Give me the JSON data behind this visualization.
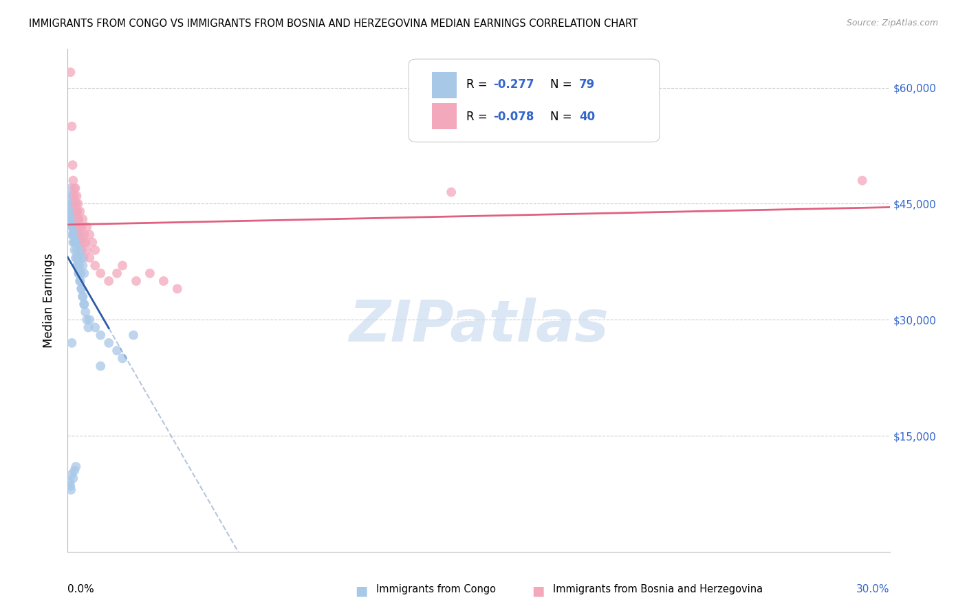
{
  "title": "IMMIGRANTS FROM CONGO VS IMMIGRANTS FROM BOSNIA AND HERZEGOVINA MEDIAN EARNINGS CORRELATION CHART",
  "source": "Source: ZipAtlas.com",
  "ylabel": "Median Earnings",
  "legend_r1": "R = -0.277",
  "legend_n1": "N = 79",
  "legend_r2": "R = -0.078",
  "legend_n2": "N = 40",
  "legend_label1": "Immigrants from Congo",
  "legend_label2": "Immigrants from Bosnia and Herzegovina",
  "color_blue": "#A8C8E8",
  "color_pink": "#F4A8BC",
  "color_blue_line": "#2B5BA8",
  "color_pink_line": "#E06080",
  "color_text_blue": "#3366CC",
  "grid_color": "#CCCCCC",
  "xlim": [
    0.0,
    0.3
  ],
  "ylim": [
    0,
    65000
  ],
  "watermark": "ZIPatlas",
  "congo_x": [
    0.0008,
    0.001,
    0.0012,
    0.0015,
    0.0018,
    0.002,
    0.0022,
    0.0025,
    0.0028,
    0.003,
    0.0012,
    0.0015,
    0.0018,
    0.002,
    0.0022,
    0.0025,
    0.0028,
    0.003,
    0.0033,
    0.0035,
    0.0038,
    0.004,
    0.0042,
    0.0045,
    0.0048,
    0.005,
    0.0052,
    0.0055,
    0.0058,
    0.006,
    0.0015,
    0.0018,
    0.002,
    0.0022,
    0.0025,
    0.0028,
    0.003,
    0.0033,
    0.0035,
    0.0038,
    0.004,
    0.0042,
    0.0045,
    0.0048,
    0.005,
    0.0055,
    0.006,
    0.0065,
    0.007,
    0.0075,
    0.001,
    0.0012,
    0.0015,
    0.0018,
    0.002,
    0.0025,
    0.003,
    0.0035,
    0.004,
    0.0045,
    0.005,
    0.0055,
    0.006,
    0.008,
    0.01,
    0.012,
    0.015,
    0.018,
    0.02,
    0.024,
    0.0008,
    0.001,
    0.0012,
    0.0015,
    0.002,
    0.0025,
    0.003,
    0.0015,
    0.012
  ],
  "congo_y": [
    44000,
    46000,
    43000,
    45000,
    42000,
    44000,
    41000,
    43000,
    40000,
    42000,
    47000,
    45000,
    46000,
    44000,
    45000,
    43000,
    42000,
    44000,
    41000,
    43000,
    42000,
    40000,
    41000,
    39000,
    40000,
    38000,
    39000,
    37000,
    38000,
    36000,
    41000,
    42000,
    40000,
    41000,
    39000,
    40000,
    38000,
    39000,
    37000,
    38000,
    36000,
    37000,
    35000,
    36000,
    34000,
    33000,
    32000,
    31000,
    30000,
    29000,
    43000,
    44000,
    42000,
    43000,
    41000,
    40000,
    38000,
    37000,
    36000,
    35000,
    34000,
    33000,
    32000,
    30000,
    29000,
    28000,
    27000,
    26000,
    25000,
    28000,
    9000,
    8500,
    8000,
    10000,
    9500,
    10500,
    11000,
    27000,
    24000
  ],
  "bosnia_x": [
    0.001,
    0.0015,
    0.0018,
    0.002,
    0.0025,
    0.0028,
    0.003,
    0.0033,
    0.0035,
    0.0038,
    0.004,
    0.0045,
    0.005,
    0.0055,
    0.006,
    0.0065,
    0.007,
    0.008,
    0.009,
    0.01,
    0.0025,
    0.003,
    0.0035,
    0.004,
    0.0045,
    0.005,
    0.006,
    0.007,
    0.008,
    0.01,
    0.012,
    0.015,
    0.018,
    0.02,
    0.025,
    0.03,
    0.035,
    0.04,
    0.14,
    0.29
  ],
  "bosnia_y": [
    62000,
    55000,
    50000,
    48000,
    46000,
    47000,
    45000,
    46000,
    44000,
    45000,
    43000,
    44000,
    42000,
    43000,
    41000,
    40000,
    42000,
    41000,
    40000,
    39000,
    47000,
    45000,
    44000,
    43000,
    42000,
    41000,
    40000,
    39000,
    38000,
    37000,
    36000,
    35000,
    36000,
    37000,
    35000,
    36000,
    35000,
    34000,
    46500,
    48000
  ]
}
